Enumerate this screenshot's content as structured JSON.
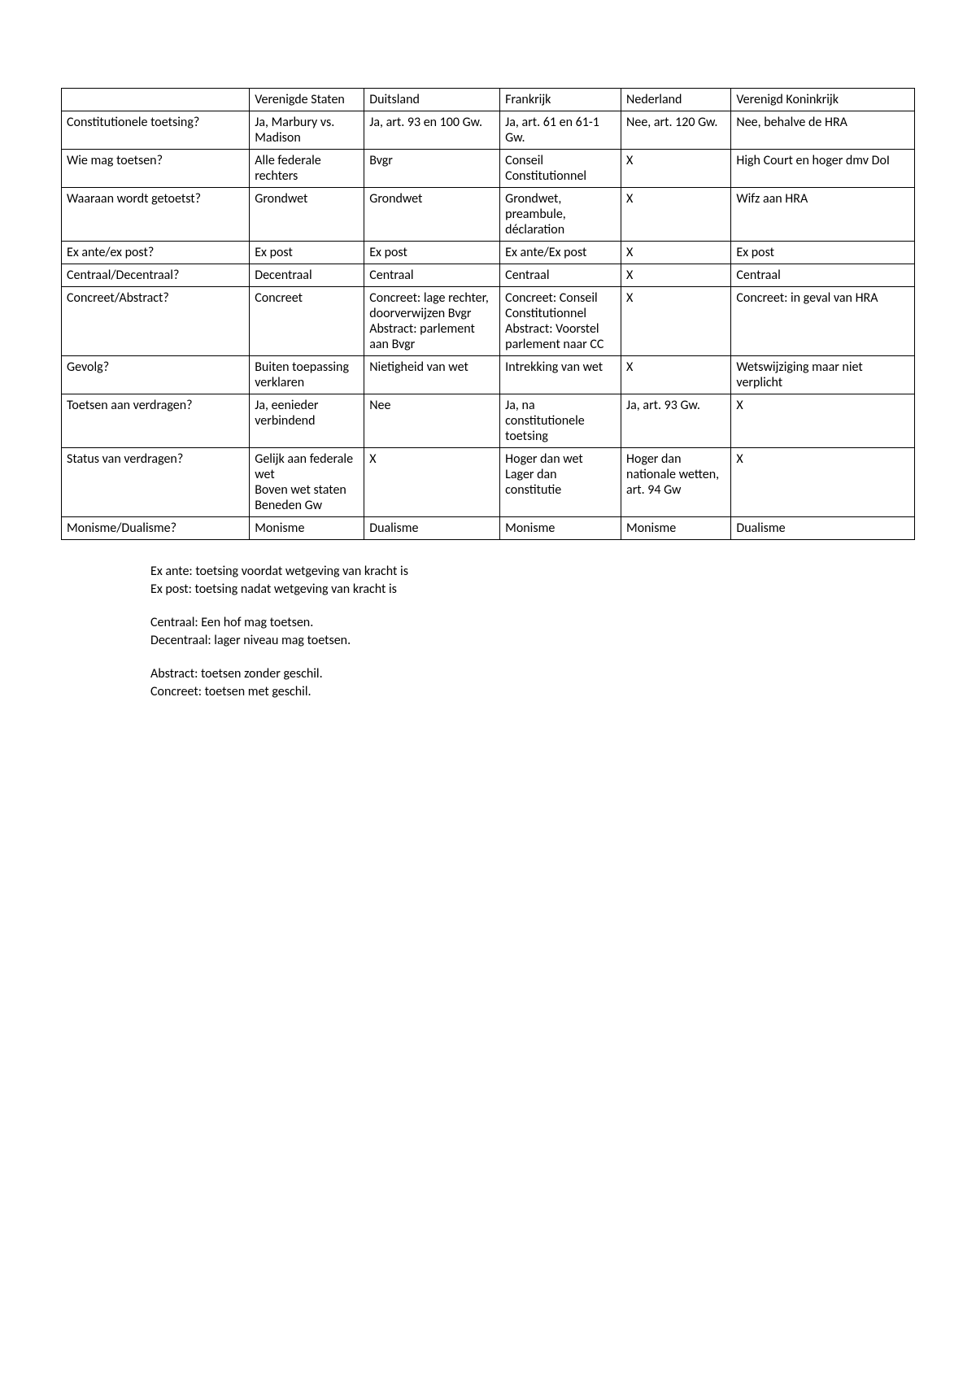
{
  "table": {
    "columns": [
      "",
      "Verenigde Staten",
      "Duitsland",
      "Frankrijk",
      "Nederland",
      "Verenigd Koninkrijk"
    ],
    "rows": [
      {
        "label": "Constitutionele toetsing?",
        "cells": [
          "Ja, Marbury vs. Madison",
          "Ja, art. 93 en 100 Gw.",
          "Ja, art. 61 en 61-1 Gw.",
          "Nee, art. 120 Gw.",
          "Nee, behalve de HRA"
        ]
      },
      {
        "label": "Wie mag toetsen?",
        "cells": [
          "Alle federale rechters",
          "Bvgr",
          "Conseil Constitutionnel",
          "X",
          "High Court en hoger dmv DoI"
        ]
      },
      {
        "label": "Waaraan wordt getoetst?",
        "cells": [
          "Grondwet",
          "Grondwet",
          "Grondwet, preambule, déclaration",
          "X",
          "Wifz aan HRA"
        ]
      },
      {
        "label": "Ex ante/ex post?",
        "cells": [
          "Ex post",
          "Ex post",
          "Ex ante/Ex post",
          "X",
          "Ex post"
        ]
      },
      {
        "label": "Centraal/Decentraal?",
        "cells": [
          "Decentraal",
          "Centraal",
          "Centraal",
          "X",
          "Centraal"
        ]
      },
      {
        "label": "Concreet/Abstract?",
        "cells": [
          "Concreet",
          "Concreet: lage rechter, doorverwijzen Bvgr\nAbstract: parlement aan Bvgr",
          "Concreet: Conseil Constitutionnel\nAbstract: Voorstel parlement naar CC",
          "X",
          "Concreet: in geval van HRA"
        ]
      },
      {
        "label": "Gevolg?",
        "cells": [
          "Buiten toepassing verklaren",
          "Nietigheid van wet",
          "Intrekking van wet",
          "X",
          "Wetswijziging maar niet verplicht"
        ]
      },
      {
        "label": "Toetsen aan verdragen?",
        "cells": [
          "Ja, eenieder verbindend",
          "Nee",
          "Ja, na constitutionele toetsing",
          "Ja, art. 93 Gw.",
          "X"
        ]
      },
      {
        "label": "Status van verdragen?",
        "cells": [
          "Gelijk aan federale wet\nBoven wet staten\nBeneden Gw",
          "X",
          "Hoger dan wet\nLager dan constitutie",
          "Hoger dan nationale wetten, art. 94 Gw",
          "X"
        ]
      },
      {
        "label": "Monisme/Dualisme?",
        "cells": [
          "Monisme",
          "Dualisme",
          "Monisme",
          "Monisme",
          "Dualisme"
        ]
      }
    ]
  },
  "notes": [
    [
      "Ex ante: toetsing voordat wetgeving van kracht is",
      "Ex post: toetsing nadat wetgeving van kracht is"
    ],
    [
      "Centraal: Een hof mag toetsen.",
      "Decentraal: lager niveau mag toetsen."
    ],
    [
      "Abstract: toetsen zonder geschil.",
      "Concreet: toetsen met geschil."
    ]
  ]
}
